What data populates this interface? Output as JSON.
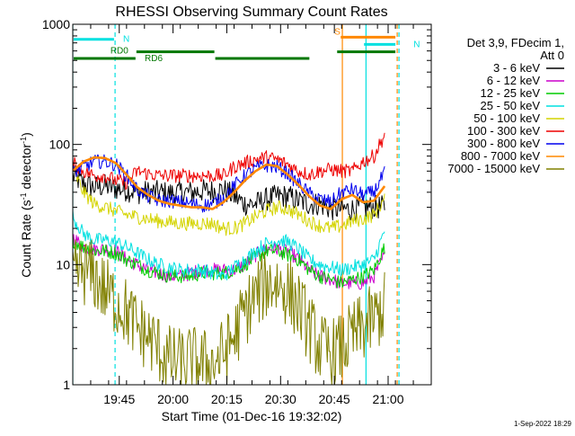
{
  "chart_data": {
    "type": "line",
    "title": "RHESSI Observing Summary Count Rates",
    "xlabel": "Start Time (01-Dec-16 19:32:02)",
    "ylabel_main": "Count Rate (s",
    "ylabel_sup1": "-1",
    "ylabel_mid": " detector",
    "ylabel_sup2": "-1",
    "ylabel_end": ")",
    "timestamp": "1-Sep-2022 18:29",
    "y_scale": "log",
    "ylim": [
      1,
      1000
    ],
    "xlim_minutes_from_start": [
      0,
      100
    ],
    "x_ticks": [
      {
        "label": "19:45",
        "t": 12.97
      },
      {
        "label": "20:00",
        "t": 27.97
      },
      {
        "label": "20:15",
        "t": 42.97
      },
      {
        "label": "20:30",
        "t": 57.97
      },
      {
        "label": "20:45",
        "t": 72.97
      },
      {
        "label": "21:00",
        "t": 87.97
      }
    ],
    "y_ticks": [
      {
        "label": "1",
        "v": 1
      },
      {
        "label": "10",
        "v": 10
      },
      {
        "label": "100",
        "v": 100
      },
      {
        "label": "1000",
        "v": 1000
      }
    ],
    "legend_header": [
      "Det 3,9, FDecim 1,",
      "Att 0"
    ],
    "legend_position": "right",
    "series": [
      {
        "name": "3 - 6 keV",
        "color": "#000000",
        "x": [
          0,
          3,
          6,
          9,
          12,
          15,
          18,
          21,
          24,
          27,
          30,
          33,
          36,
          39,
          42,
          45,
          48,
          51,
          54,
          57,
          60,
          63,
          66,
          69,
          72,
          75,
          78,
          81,
          84,
          87
        ],
        "values": [
          55,
          47,
          44,
          45,
          43,
          42,
          40,
          40,
          40,
          39,
          40,
          40,
          41,
          41,
          42,
          37,
          32,
          32,
          35,
          37,
          37,
          34,
          32,
          32,
          29,
          29,
          29,
          30,
          30,
          30
        ]
      },
      {
        "name": "6 - 12 keV",
        "color": "#cc00cc",
        "x": [
          0,
          3,
          6,
          9,
          12,
          15,
          18,
          21,
          24,
          27,
          30,
          33,
          36,
          39,
          42,
          45,
          48,
          51,
          54,
          57,
          60,
          63,
          66,
          69,
          72,
          75,
          78,
          81,
          84,
          87
        ],
        "values": [
          17,
          14,
          13.5,
          13.5,
          13,
          11,
          10,
          9,
          8.5,
          8,
          8,
          8.5,
          9,
          9,
          9,
          9,
          10,
          12,
          13.5,
          13.5,
          13,
          11,
          9,
          8,
          7.5,
          7,
          7,
          7,
          8,
          12
        ]
      },
      {
        "name": "12 - 25 keV",
        "color": "#00cc00",
        "x": [
          0,
          3,
          6,
          9,
          12,
          15,
          18,
          21,
          24,
          27,
          30,
          33,
          36,
          39,
          42,
          45,
          48,
          51,
          54,
          57,
          60,
          63,
          66,
          69,
          72,
          75,
          78,
          81,
          84,
          87
        ],
        "values": [
          16,
          14,
          13,
          13,
          12.5,
          11,
          10,
          9,
          8.5,
          8,
          8,
          8,
          8.5,
          8.5,
          8.5,
          9,
          10,
          11.5,
          13,
          13,
          12,
          11,
          9,
          8,
          7.5,
          7,
          7.5,
          8,
          9,
          14
        ]
      },
      {
        "name": "25 - 50 keV",
        "color": "#00e0e0",
        "x": [
          0,
          3,
          6,
          9,
          12,
          15,
          18,
          21,
          24,
          27,
          30,
          33,
          36,
          39,
          42,
          45,
          48,
          51,
          54,
          57,
          60,
          63,
          66,
          69,
          72,
          75,
          78,
          81,
          84,
          87
        ],
        "values": [
          25,
          18,
          16,
          16,
          15.5,
          14,
          12.5,
          11,
          10,
          9.5,
          9,
          9,
          9,
          8.5,
          8,
          9.5,
          11,
          13,
          15,
          16,
          15.5,
          13.5,
          11,
          10,
          9.5,
          9,
          9.5,
          10,
          11,
          19
        ]
      },
      {
        "name": "50 - 100 keV",
        "color": "#d4d400",
        "x": [
          0,
          3,
          6,
          9,
          12,
          15,
          18,
          21,
          24,
          27,
          30,
          33,
          36,
          39,
          42,
          45,
          48,
          51,
          54,
          57,
          60,
          63,
          66,
          69,
          72,
          75,
          78,
          81,
          84,
          87
        ],
        "values": [
          62,
          40,
          32,
          30,
          28,
          26,
          25,
          24,
          23,
          22.5,
          22,
          22,
          22,
          22,
          20,
          20,
          22,
          25,
          28,
          30,
          29,
          26,
          23,
          21,
          20,
          21,
          23,
          24,
          26,
          35
        ]
      },
      {
        "name": "100 - 300 keV",
        "color": "#ee0000",
        "x": [
          0,
          3,
          6,
          9,
          12,
          15,
          18,
          21,
          24,
          27,
          30,
          33,
          36,
          39,
          42,
          45,
          48,
          51,
          54,
          57,
          60,
          63,
          66,
          69,
          72,
          75,
          78,
          81,
          84,
          87
        ],
        "values": [
          70,
          60,
          55,
          55,
          50,
          48,
          60,
          57,
          55,
          55,
          55,
          55,
          55,
          55,
          55,
          65,
          70,
          75,
          78,
          75,
          68,
          60,
          56,
          60,
          62,
          60,
          60,
          72,
          80,
          120
        ]
      },
      {
        "name": "300 - 800 keV",
        "color": "#0000ee",
        "x": [
          0,
          3,
          6,
          9,
          12,
          15,
          18,
          21,
          24,
          27,
          30,
          33,
          36,
          39,
          42,
          45,
          48,
          51,
          54,
          57,
          60,
          63,
          66,
          69,
          72,
          75,
          78,
          81,
          84,
          87
        ],
        "values": [
          58,
          65,
          72,
          72,
          68,
          55,
          42,
          37,
          34,
          34,
          33,
          32,
          31,
          32,
          36,
          45,
          55,
          63,
          67,
          65,
          57,
          47,
          39,
          35,
          33,
          40,
          42,
          38,
          40,
          58
        ]
      },
      {
        "name": "800 - 7000 keV",
        "color": "#ff8800",
        "x": [
          0,
          3,
          6,
          9,
          12,
          15,
          18,
          21,
          24,
          27,
          30,
          33,
          36,
          39,
          42,
          45,
          48,
          51,
          54,
          57,
          60,
          63,
          66,
          69,
          72,
          75,
          78,
          81,
          84,
          87
        ],
        "values": [
          60,
          72,
          78,
          77,
          70,
          56,
          44,
          38,
          34,
          32,
          31,
          30,
          30,
          29,
          33,
          40,
          50,
          60,
          68,
          66,
          56,
          46,
          37,
          31,
          29,
          35,
          38,
          33,
          34,
          45
        ]
      },
      {
        "name": "7000 - 15000 keV",
        "color": "#808000",
        "x": [
          0,
          3,
          6,
          9,
          12,
          15,
          18,
          21,
          24,
          27,
          30,
          33,
          36,
          39,
          42,
          45,
          48,
          51,
          54,
          57,
          60,
          63,
          66,
          69,
          72,
          75,
          78,
          81,
          84,
          87
        ],
        "values": [
          8,
          9,
          8,
          6,
          5,
          4,
          3,
          2.5,
          2,
          1.6,
          1.5,
          1.6,
          1.5,
          1.5,
          1.8,
          2.5,
          4,
          5.5,
          7,
          7,
          6,
          4.5,
          3,
          2,
          1.8,
          2,
          2.5,
          3,
          3.5,
          4.5
        ]
      }
    ],
    "overlays": [
      {
        "label": "N",
        "color": "#00e0e0",
        "y": 750,
        "x": [
          0,
          11.5
        ]
      },
      {
        "label": "N",
        "color": "#00e0e0",
        "y": 680,
        "x": [
          81,
          90
        ]
      },
      {
        "label": "S",
        "color": "#ff8800",
        "y": 780,
        "x": [
          74.5,
          90
        ]
      },
      {
        "label": "RD0",
        "color": "#007700",
        "y": 590,
        "x": [
          17.5,
          39.5
        ]
      },
      {
        "label": "",
        "color": "#007700",
        "y": 590,
        "x": [
          73.5,
          90
        ]
      },
      {
        "label": "RD6",
        "color": "#007700",
        "y": 520,
        "x": [
          0,
          17.5
        ]
      },
      {
        "label": "",
        "color": "#007700",
        "y": 520,
        "x": [
          39.5,
          66
        ]
      }
    ],
    "vertical_markers": [
      {
        "t": 0,
        "color": "#00e0e0",
        "style": "solid"
      },
      {
        "t": 11.8,
        "color": "#00e0e0",
        "style": "dashed"
      },
      {
        "t": 75.2,
        "color": "#ff8800",
        "style": "solid"
      },
      {
        "t": 81.8,
        "color": "#00e0e0",
        "style": "solid"
      },
      {
        "t": 90.5,
        "color": "#ff8800",
        "style": "dashed"
      },
      {
        "t": 90.5,
        "color": "#00e0e0",
        "style": "dashed"
      }
    ]
  }
}
